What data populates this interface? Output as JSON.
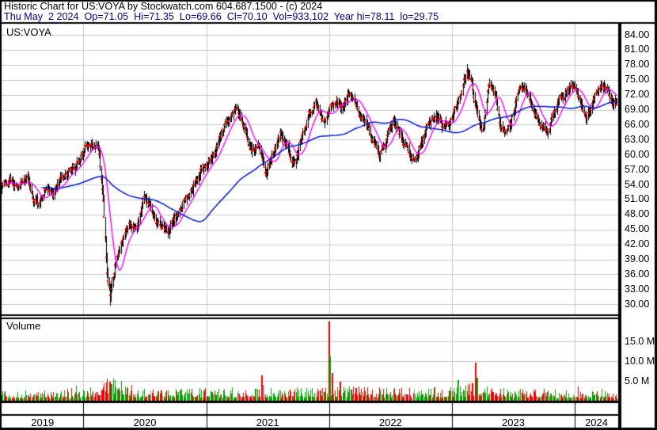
{
  "header": {
    "line1": "Historic Chart for US:VOYA by Stockwatch.com 604.687.1500 - (c) 2024",
    "line2": "Thu May  2 2024  Op=71.05  Hi=71.35  Lo=69.66  Cl=70.10  Vol=933,102  Year hi=78.11  lo=29.75"
  },
  "price_panel": {
    "symbol_label": "US:VOYA",
    "ticks": [
      {
        "label": "84.00",
        "value": 84
      },
      {
        "label": "81.00",
        "value": 81
      },
      {
        "label": "78.00",
        "value": 78
      },
      {
        "label": "75.00",
        "value": 75
      },
      {
        "label": "72.00",
        "value": 72
      },
      {
        "label": "69.00",
        "value": 69
      },
      {
        "label": "66.00",
        "value": 66
      },
      {
        "label": "63.00",
        "value": 63
      },
      {
        "label": "60.00",
        "value": 60
      },
      {
        "label": "57.00",
        "value": 57
      },
      {
        "label": "54.00",
        "value": 54
      },
      {
        "label": "51.00",
        "value": 51
      },
      {
        "label": "48.00",
        "value": 48
      },
      {
        "label": "45.00",
        "value": 45
      },
      {
        "label": "42.00",
        "value": 42
      },
      {
        "label": "39.00",
        "value": 39
      },
      {
        "label": "36.00",
        "value": 36
      },
      {
        "label": "33.00",
        "value": 33
      },
      {
        "label": "30.00",
        "value": 30
      }
    ]
  },
  "volume_panel": {
    "title": "Volume",
    "ticks": [
      {
        "label": "15.0 M",
        "value": 15
      },
      {
        "label": "10.0 M",
        "value": 10
      },
      {
        "label": "5.0 M",
        "value": 5
      }
    ]
  },
  "x_axis": {
    "years": [
      "2019",
      "2020",
      "2021",
      "2022",
      "2023",
      "2024"
    ]
  },
  "chart_data": {
    "type": "candlestick+volume",
    "symbol": "US:VOYA",
    "title": "Historic Chart for US:VOYA by Stockwatch.com 604.687.1500 - (c) 2024",
    "quote": {
      "date": "Thu May 2 2024",
      "open": 71.05,
      "high": 71.35,
      "low": 69.66,
      "close": 70.1,
      "volume": "933,102",
      "year_high": 78.11,
      "year_low": 29.75
    },
    "price_axis": {
      "min": 30,
      "max": 84,
      "step": 3
    },
    "volume_axis_M": {
      "ticks": [
        5,
        10,
        15
      ],
      "max": 20
    },
    "time_axis": {
      "start": "May 2019",
      "end": "May 2024",
      "year_start_months": [
        8,
        20,
        32,
        44,
        56
      ],
      "total_months": 60.1
    },
    "price_anchors_monthly_close": [
      [
        0,
        53.5
      ],
      [
        0.8,
        55
      ],
      [
        1.6,
        54
      ],
      [
        2.4,
        56
      ],
      [
        3.1,
        51
      ],
      [
        3.7,
        49.5
      ],
      [
        4.3,
        53.5
      ],
      [
        5.1,
        53
      ],
      [
        5.9,
        55.5
      ],
      [
        6.7,
        57
      ],
      [
        7.4,
        58.5
      ],
      [
        8.1,
        61
      ],
      [
        8.9,
        62
      ],
      [
        9.5,
        60.5
      ],
      [
        9.9,
        52
      ],
      [
        10.3,
        36
      ],
      [
        10.6,
        31.5
      ],
      [
        11.1,
        38.5
      ],
      [
        11.7,
        43
      ],
      [
        12.4,
        45.5
      ],
      [
        13.1,
        44
      ],
      [
        13.9,
        51.5
      ],
      [
        14.7,
        49
      ],
      [
        15.5,
        45.5
      ],
      [
        16.3,
        44.5
      ],
      [
        17.1,
        47.5
      ],
      [
        17.9,
        51
      ],
      [
        18.7,
        54
      ],
      [
        19.4,
        56.5
      ],
      [
        20.1,
        58.5
      ],
      [
        20.9,
        61.5
      ],
      [
        21.7,
        65.5
      ],
      [
        22.5,
        68.5
      ],
      [
        23,
        69.5
      ],
      [
        23.7,
        65
      ],
      [
        24.4,
        59.5
      ],
      [
        25.1,
        61.5
      ],
      [
        25.8,
        56
      ],
      [
        26.5,
        60.5
      ],
      [
        27.2,
        64
      ],
      [
        27.9,
        61
      ],
      [
        28.6,
        57.5
      ],
      [
        29.3,
        63
      ],
      [
        30,
        68
      ],
      [
        30.7,
        70
      ],
      [
        31.4,
        66.5
      ],
      [
        32.1,
        69.5
      ],
      [
        32.8,
        71.5
      ],
      [
        33.4,
        69.5
      ],
      [
        34,
        72.5
      ],
      [
        34.7,
        70
      ],
      [
        35.4,
        66.5
      ],
      [
        36.1,
        63
      ],
      [
        36.8,
        59.5
      ],
      [
        37.5,
        61.5
      ],
      [
        38.2,
        67
      ],
      [
        38.9,
        64.5
      ],
      [
        39.6,
        61.5
      ],
      [
        40.3,
        58.5
      ],
      [
        41,
        62
      ],
      [
        41.7,
        66.5
      ],
      [
        42.4,
        68
      ],
      [
        43.2,
        65.5
      ],
      [
        44,
        67.5
      ],
      [
        44.7,
        71.5
      ],
      [
        45.45,
        76.5
      ],
      [
        45.9,
        75
      ],
      [
        46.5,
        68
      ],
      [
        47,
        65
      ],
      [
        47.6,
        74.5
      ],
      [
        48.1,
        73
      ],
      [
        48.7,
        66.5
      ],
      [
        49.3,
        65
      ],
      [
        50,
        69
      ],
      [
        50.6,
        74.5
      ],
      [
        51.2,
        72.5
      ],
      [
        51.8,
        69.5
      ],
      [
        52.6,
        65.5
      ],
      [
        53.3,
        64.5
      ],
      [
        54,
        68.5
      ],
      [
        54.8,
        71.5
      ],
      [
        55.5,
        73.5
      ],
      [
        55.9,
        74
      ],
      [
        56.2,
        72.5
      ],
      [
        56.7,
        69.5
      ],
      [
        57.2,
        68
      ],
      [
        57.9,
        71.5
      ],
      [
        58.6,
        74
      ],
      [
        59.2,
        72.5
      ],
      [
        59.7,
        70.5
      ],
      [
        60.1,
        70.1
      ]
    ],
    "volume_base_anchors_M": [
      [
        0,
        1.2
      ],
      [
        6,
        1.4
      ],
      [
        8,
        1.6
      ],
      [
        9.8,
        2.2
      ],
      [
        10.6,
        3.2
      ],
      [
        11.5,
        2.6
      ],
      [
        13,
        1.8
      ],
      [
        16,
        1.5
      ],
      [
        20,
        1.5
      ],
      [
        24,
        1.6
      ],
      [
        28,
        1.5
      ],
      [
        32,
        2.0
      ],
      [
        34,
        1.8
      ],
      [
        37,
        1.6
      ],
      [
        40,
        1.5
      ],
      [
        44,
        1.8
      ],
      [
        46,
        2.2
      ],
      [
        48,
        1.6
      ],
      [
        52,
        1.4
      ],
      [
        56,
        1.3
      ],
      [
        60.1,
        1.2
      ]
    ],
    "volume_spikes": [
      {
        "m": 7.3,
        "v": 3.8,
        "c": "green"
      },
      {
        "m": 10.15,
        "v": 4.6,
        "c": "red"
      },
      {
        "m": 10.45,
        "v": 4.9,
        "c": "red"
      },
      {
        "m": 10.7,
        "v": 4.2,
        "c": "green"
      },
      {
        "m": 11.5,
        "v": 3.2,
        "c": "red"
      },
      {
        "m": 13.9,
        "v": 3.0,
        "c": "green"
      },
      {
        "m": 22.5,
        "v": 3.4,
        "c": "green"
      },
      {
        "m": 25.3,
        "v": 6.4,
        "c": "red"
      },
      {
        "m": 25.5,
        "v": 4.1,
        "c": "gray"
      },
      {
        "m": 31.9,
        "v": 20.0,
        "c": "red"
      },
      {
        "m": 32.05,
        "v": 11.2,
        "c": "green"
      },
      {
        "m": 32.25,
        "v": 7.0,
        "c": "red"
      },
      {
        "m": 33.0,
        "v": 4.8,
        "c": "red"
      },
      {
        "m": 36.9,
        "v": 3.4,
        "c": "red"
      },
      {
        "m": 40.3,
        "v": 3.0,
        "c": "gray"
      },
      {
        "m": 44.6,
        "v": 5.3,
        "c": "green"
      },
      {
        "m": 45.9,
        "v": 4.5,
        "c": "red"
      },
      {
        "m": 46.2,
        "v": 9.6,
        "c": "red"
      },
      {
        "m": 46.4,
        "v": 5.8,
        "c": "green"
      },
      {
        "m": 49.0,
        "v": 3.2,
        "c": "green"
      },
      {
        "m": 53.0,
        "v": 3.0,
        "c": "red"
      },
      {
        "m": 56.3,
        "v": 3.6,
        "c": "red"
      },
      {
        "m": 58.6,
        "v": 3.0,
        "c": "green"
      }
    ],
    "specials": {
      "covid_low": {
        "m": 10.6,
        "low": 29.75
      },
      "year_peak": {
        "m": 45.45,
        "high": 78.11
      },
      "last_bar": {
        "open": 71.05,
        "high": 71.35,
        "low": 69.66,
        "close": 70.1
      }
    },
    "moving_averages": [
      {
        "name": "short",
        "window_bars": 15,
        "color": "#ff00ff"
      },
      {
        "name": "long",
        "window_bars": 100,
        "color": "#0018cc"
      }
    ],
    "colors": {
      "candle": "#000000",
      "close_tick": "#ee0000",
      "volume_up": "#00a000",
      "volume_down": "#ee0000",
      "volume_flat": "#a0a0a0",
      "grid": "#c8c8c8",
      "frame": "#000000",
      "quote_text": "#000080",
      "background": "#ffffff"
    }
  }
}
